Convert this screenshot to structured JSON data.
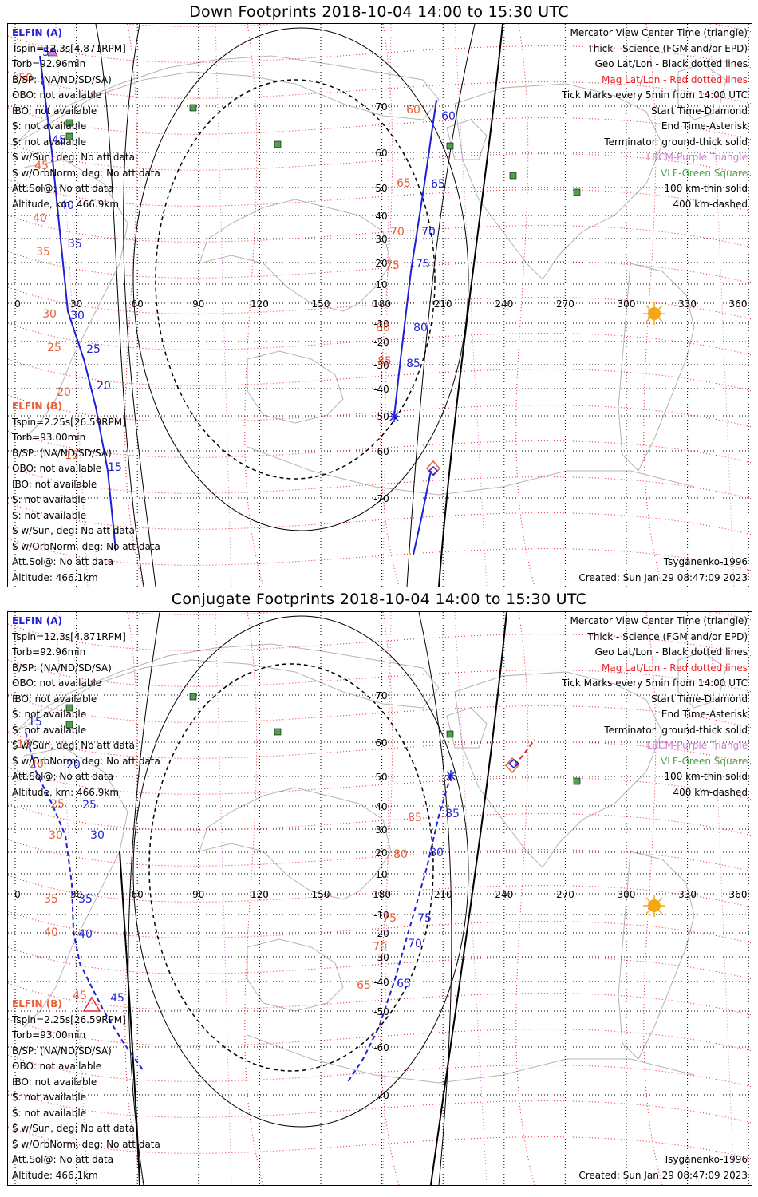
{
  "panels": [
    {
      "title": "Down Footprints 2018-10-04 14:00 to 15:30 UTC",
      "sc_a": {
        "name": "ELFIN (A)",
        "lines": [
          "Tspin=12.3s[4.871RPM]",
          "Torb=92.96min",
          "B/SP: (NA/ND/SD/SA)",
          "OBO: not available",
          "IBO: not available",
          "S: not available",
          "S: not available",
          "S w/Sun, deg: No att data",
          "S w/OrbNorm, deg: No att data",
          "Att.Sol@: No att data",
          "Altitude, km: 466.9km"
        ]
      },
      "sc_b": {
        "name": "ELFIN (B)",
        "lines": [
          "Tspin=2.25s[26.59RPM]",
          "Torb=93.00min",
          "B/SP: (NA/ND/SD/SA)",
          "OBO: not available",
          "IBO: not available",
          "S: not available",
          "S: not available",
          "S w/Sun, deg: No att data",
          "S w/OrbNorm, deg: No att data",
          "Att.Sol@: No att data",
          "Altitude: 466.1km"
        ]
      },
      "legend": [
        {
          "text": "Mercator View Center Time (triangle)",
          "color": "#000000"
        },
        {
          "text": "Thick - Science (FGM and/or EPD)",
          "color": "#000000"
        },
        {
          "text": "Geo Lat/Lon - Black dotted lines",
          "color": "#000000"
        },
        {
          "text": "Mag Lat/Lon - Red dotted lines",
          "color": "#e8242a"
        },
        {
          "text": "Tick Marks every 5min from 14:00 UTC",
          "color": "#000000"
        },
        {
          "text": "Start Time-Diamond",
          "color": "#000000"
        },
        {
          "text": "End Time-Asterisk",
          "color": "#000000"
        },
        {
          "text": "Terminator: ground-thick solid",
          "color": "#000000"
        },
        {
          "text": "LBCM-Purple Triangle",
          "color": "#d77ad7"
        },
        {
          "text": "VLF-Green Square",
          "color": "#4fa04f"
        },
        {
          "text": "100 km-thin solid",
          "color": "#000000"
        },
        {
          "text": "400 km-dashed",
          "color": "#000000"
        }
      ],
      "model": "Tsyganenko-1996",
      "created": "Created: Sun Jan 29 08:47:09 2023",
      "lon_ticks": [
        "0",
        "30",
        "60",
        "90",
        "120",
        "150",
        "180",
        "210",
        "240",
        "270",
        "300",
        "330",
        "360"
      ],
      "lat_ticks": [
        "70",
        "60",
        "50",
        "40",
        "30",
        "20",
        "10",
        "-10",
        "-20",
        "-30",
        "-40",
        "-50",
        "-60",
        "-70"
      ],
      "track_a_labels": [
        "50",
        "45",
        "40",
        "35",
        "30",
        "25",
        "20",
        "15"
      ],
      "track_b_labels": [
        "60",
        "65",
        "70",
        "75",
        "80",
        "85"
      ],
      "mag_labels_left": [
        "50",
        "45",
        "40",
        "35",
        "30",
        "25",
        "20",
        "15"
      ],
      "mag_labels_right": [
        "60",
        "65",
        "70",
        "75",
        "80",
        "85"
      ]
    },
    {
      "title": "Conjugate Footprints 2018-10-04 14:00 to 15:30 UTC",
      "sc_a": {
        "name": "ELFIN (A)",
        "lines": [
          "Tspin=12.3s[4.871RPM]",
          "Torb=92.96min",
          "B/SP: (NA/ND/SD/SA)",
          "OBO: not available",
          "IBO: not available",
          "S: not available",
          "S: not available",
          "S w/Sun, deg: No att data",
          "S w/OrbNorm, deg: No att data",
          "Att.Sol@: No att data",
          "Altitude, km: 466.9km"
        ]
      },
      "sc_b": {
        "name": "ELFIN (B)",
        "lines": [
          "Tspin=2.25s[26.59RPM]",
          "Torb=93.00min",
          "B/SP: (NA/ND/SD/SA)",
          "OBO: not available",
          "IBO: not available",
          "S: not available",
          "S: not available",
          "S w/Sun, deg: No att data",
          "S w/OrbNorm, deg: No att data",
          "Att.Sol@: No att data",
          "Altitude: 466.1km"
        ]
      },
      "legend": [
        {
          "text": "Mercator View Center Time (triangle)",
          "color": "#000000"
        },
        {
          "text": "Thick - Science (FGM and/or EPD)",
          "color": "#000000"
        },
        {
          "text": "Geo Lat/Lon - Black dotted lines",
          "color": "#000000"
        },
        {
          "text": "Mag Lat/Lon - Red dotted lines",
          "color": "#e8242a"
        },
        {
          "text": "Tick Marks every 5min from 14:00 UTC",
          "color": "#000000"
        },
        {
          "text": "Start Time-Diamond",
          "color": "#000000"
        },
        {
          "text": "End Time-Asterisk",
          "color": "#000000"
        },
        {
          "text": "Terminator: ground-thick solid",
          "color": "#000000"
        },
        {
          "text": "LBCM-Purple Triangle",
          "color": "#d77ad7"
        },
        {
          "text": "VLF-Green Square",
          "color": "#4fa04f"
        },
        {
          "text": "100 km-thin solid",
          "color": "#000000"
        },
        {
          "text": "400 km-dashed",
          "color": "#000000"
        }
      ],
      "model": "Tsyganenko-1996",
      "created": "Created: Sun Jan 29 08:47:09 2023",
      "lon_ticks": [
        "0",
        "30",
        "60",
        "90",
        "120",
        "150",
        "180",
        "210",
        "240",
        "270",
        "300",
        "330",
        "360"
      ],
      "lat_ticks": [
        "70",
        "60",
        "50",
        "40",
        "30",
        "20",
        "10",
        "-10",
        "-20",
        "-30",
        "-40",
        "-50",
        "-60",
        "-70"
      ],
      "track_a_labels": [
        "15",
        "20",
        "25",
        "30",
        "35",
        "40",
        "45"
      ],
      "track_b_labels": [
        "85",
        "80",
        "75",
        "70",
        "65"
      ],
      "mag_labels_left": [
        "15",
        "20",
        "25",
        "30",
        "35",
        "40",
        "45"
      ],
      "mag_labels_right": [
        "85",
        "80",
        "75",
        "70",
        "65"
      ]
    }
  ],
  "colors": {
    "track": "#1f1fd6",
    "mag_label": "#e8603a",
    "mag_grid": "#e8242a",
    "vlf": "#4fa04f",
    "lbcm": "#d77ad7",
    "sun": "#f5a614"
  }
}
